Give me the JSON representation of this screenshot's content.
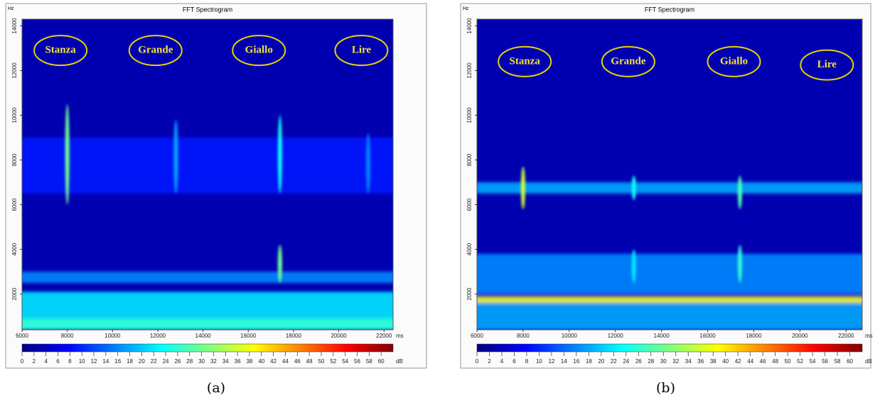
{
  "chart_data": [
    {
      "type": "spectrogram",
      "title": "FFT Spectrogram",
      "caption": "(a)",
      "y_unit": "Hz",
      "x_unit": "ms",
      "colorbar_unit": "dB",
      "xlim": [
        6000,
        22400
      ],
      "xticks": [
        6000,
        8000,
        10000,
        12000,
        14000,
        16000,
        18000,
        20000,
        22000
      ],
      "ylim": [
        400,
        14300
      ],
      "yticks": [
        2000,
        4000,
        6000,
        8000,
        10000,
        12000,
        14000
      ],
      "colorbar_lim": [
        0,
        62
      ],
      "colorbar_ticks": [
        0,
        2,
        4,
        6,
        8,
        10,
        12,
        14,
        16,
        18,
        20,
        22,
        24,
        26,
        28,
        30,
        32,
        34,
        36,
        38,
        40,
        42,
        44,
        46,
        48,
        50,
        52,
        54,
        56,
        58,
        60
      ],
      "background_level": 3,
      "bands": [
        {
          "from": 6500,
          "to": 9000,
          "level": 9
        },
        {
          "from": 2500,
          "to": 3000,
          "level": 16
        },
        {
          "from": 400,
          "to": 2100,
          "level": 22
        },
        {
          "from": 400,
          "to": 900,
          "level": 26
        }
      ],
      "streaks": [
        {
          "x": 8000,
          "from": 6000,
          "to": 10500,
          "level": 30
        },
        {
          "x": 12800,
          "from": 6500,
          "to": 9800,
          "level": 18
        },
        {
          "x": 17400,
          "from": 6500,
          "to": 10000,
          "level": 24
        },
        {
          "x": 17400,
          "from": 2500,
          "to": 4200,
          "level": 30
        },
        {
          "x": 21300,
          "from": 6500,
          "to": 9200,
          "level": 16
        }
      ],
      "annotations": [
        {
          "text": "Stanza",
          "x": 7700,
          "y": 12900
        },
        {
          "text": "Grande",
          "x": 11900,
          "y": 12900
        },
        {
          "text": "Giallo",
          "x": 16470,
          "y": 12900
        },
        {
          "text": "Lire",
          "x": 21000,
          "y": 12900
        }
      ]
    },
    {
      "type": "spectrogram",
      "title": "FFT Spectrogram",
      "caption": "(b)",
      "y_unit": "Hz",
      "x_unit": "ms",
      "colorbar_unit": "dB",
      "xlim": [
        6000,
        22700
      ],
      "xticks": [
        6000,
        8000,
        10000,
        12000,
        14000,
        16000,
        18000,
        20000,
        22000
      ],
      "ylim": [
        400,
        14300
      ],
      "yticks": [
        2000,
        4000,
        6000,
        8000,
        10000,
        12000,
        14000
      ],
      "colorbar_lim": [
        0,
        62
      ],
      "colorbar_ticks": [
        0,
        2,
        4,
        6,
        8,
        10,
        12,
        14,
        16,
        18,
        20,
        22,
        24,
        26,
        28,
        30,
        32,
        34,
        36,
        38,
        40,
        42,
        44,
        46,
        48,
        50,
        52,
        54,
        56,
        58,
        60
      ],
      "background_level": 3,
      "bands": [
        {
          "from": 6500,
          "to": 7000,
          "level": 18
        },
        {
          "from": 2000,
          "to": 3800,
          "level": 16
        },
        {
          "from": 1600,
          "to": 1900,
          "level": 38
        },
        {
          "from": 400,
          "to": 1600,
          "level": 18
        }
      ],
      "streaks": [
        {
          "x": 8000,
          "from": 5800,
          "to": 7700,
          "level": 36
        },
        {
          "x": 12800,
          "from": 6200,
          "to": 7300,
          "level": 24
        },
        {
          "x": 17400,
          "from": 5800,
          "to": 7300,
          "level": 28
        },
        {
          "x": 17400,
          "from": 2500,
          "to": 4200,
          "level": 26
        },
        {
          "x": 12800,
          "from": 2500,
          "to": 4000,
          "level": 22
        }
      ],
      "annotations": [
        {
          "text": "Stanza",
          "x": 8070,
          "y": 12400
        },
        {
          "text": "Grande",
          "x": 12560,
          "y": 12400
        },
        {
          "text": "Giallo",
          "x": 17140,
          "y": 12400
        },
        {
          "text": "Lire",
          "x": 21170,
          "y": 12250
        }
      ]
    }
  ]
}
